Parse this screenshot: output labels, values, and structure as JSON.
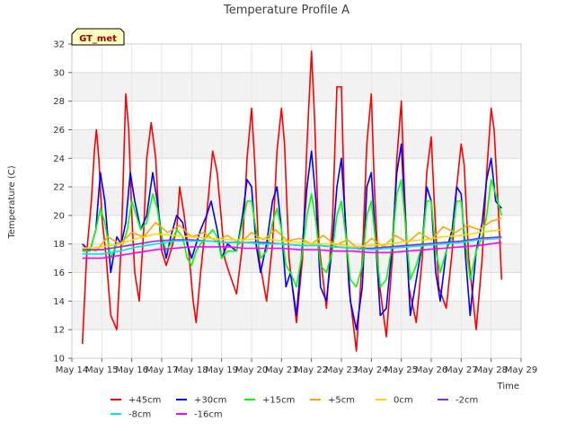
{
  "chart_data": {
    "type": "line",
    "title": "Temperature Profile A",
    "xlabel": "Time",
    "ylabel": "Temperature (C)",
    "badge": "GT_met",
    "xlim": [
      0,
      15
    ],
    "ylim": [
      10,
      32
    ],
    "y_ticks": [
      10,
      12,
      14,
      16,
      18,
      20,
      22,
      24,
      26,
      28,
      30,
      32
    ],
    "x_tick_labels": [
      "May 14",
      "May 15",
      "May 16",
      "May 17",
      "May 18",
      "May 19",
      "May 20",
      "May 21",
      "May 22",
      "May 23",
      "May 24",
      "May 25",
      "May 26",
      "May 27",
      "May 28",
      "May 29"
    ],
    "x_unit": "days from May 14",
    "grid": true,
    "legend_position": "bottom",
    "series": [
      {
        "name": "+45cm",
        "color": "#ff0000",
        "x": [
          0.35,
          0.5,
          0.65,
          0.75,
          0.82,
          0.9,
          1.0,
          1.15,
          1.3,
          1.5,
          1.65,
          1.75,
          1.8,
          1.9,
          2.0,
          2.1,
          2.25,
          2.4,
          2.5,
          2.65,
          2.8,
          2.9,
          3.0,
          3.15,
          3.3,
          3.5,
          3.6,
          3.75,
          3.9,
          4.05,
          4.15,
          4.3,
          4.5,
          4.7,
          4.85,
          5.0,
          5.1,
          5.25,
          5.5,
          5.7,
          5.85,
          6.0,
          6.1,
          6.25,
          6.5,
          6.7,
          6.85,
          7.0,
          7.1,
          7.25,
          7.5,
          7.7,
          7.85,
          8.0,
          8.1,
          8.25,
          8.5,
          8.7,
          8.85,
          9.0,
          9.1,
          9.25,
          9.5,
          9.7,
          9.85,
          10.0,
          10.1,
          10.25,
          10.5,
          10.7,
          10.85,
          11.0,
          11.1,
          11.25,
          11.5,
          11.7,
          11.85,
          12.0,
          12.1,
          12.25,
          12.5,
          12.7,
          12.85,
          13.0,
          13.1,
          13.25,
          13.5,
          13.7,
          13.85,
          14.0,
          14.1,
          14.25,
          14.35
        ],
        "values": [
          11.0,
          17.5,
          21.0,
          24.5,
          26.0,
          24.0,
          20.0,
          17.0,
          13.0,
          12.0,
          18.0,
          25.0,
          28.5,
          26.0,
          20.0,
          16.0,
          14.0,
          19.0,
          24.0,
          26.5,
          24.0,
          20.0,
          17.5,
          16.5,
          17.5,
          19.0,
          22.0,
          20.0,
          17.5,
          14.0,
          12.5,
          16.0,
          20.0,
          24.5,
          23.0,
          19.5,
          17.0,
          16.0,
          14.5,
          18.0,
          24.0,
          27.5,
          24.0,
          17.0,
          14.0,
          18.0,
          24.5,
          27.5,
          25.0,
          17.0,
          12.5,
          17.0,
          25.0,
          31.5,
          27.0,
          18.0,
          13.5,
          19.5,
          29.0,
          29.0,
          21.0,
          15.0,
          10.5,
          17.0,
          25.0,
          28.5,
          22.0,
          15.5,
          11.5,
          17.0,
          24.0,
          28.0,
          22.0,
          15.0,
          12.5,
          17.0,
          23.0,
          25.5,
          21.0,
          15.0,
          13.5,
          17.5,
          22.0,
          25.0,
          23.5,
          17.0,
          12.0,
          17.0,
          23.0,
          27.5,
          26.0,
          20.0,
          15.5
        ]
      },
      {
        "name": "+30cm",
        "color": "#0000ff",
        "x": [
          0.35,
          0.6,
          0.8,
          0.95,
          1.1,
          1.3,
          1.5,
          1.65,
          1.8,
          1.95,
          2.1,
          2.3,
          2.5,
          2.7,
          2.85,
          3.0,
          3.15,
          3.3,
          3.5,
          3.7,
          3.85,
          4.0,
          4.15,
          4.3,
          4.5,
          4.65,
          4.85,
          5.0,
          5.2,
          5.5,
          5.7,
          5.85,
          6.0,
          6.15,
          6.3,
          6.5,
          6.7,
          6.85,
          7.0,
          7.15,
          7.3,
          7.5,
          7.7,
          7.85,
          8.0,
          8.15,
          8.3,
          8.5,
          8.7,
          8.85,
          9.0,
          9.15,
          9.3,
          9.5,
          9.7,
          9.85,
          10.0,
          10.15,
          10.3,
          10.5,
          10.7,
          10.85,
          11.0,
          11.15,
          11.3,
          11.5,
          11.7,
          11.85,
          12.0,
          12.15,
          12.3,
          12.5,
          12.7,
          12.85,
          13.0,
          13.15,
          13.3,
          13.5,
          13.7,
          13.85,
          14.0,
          14.15,
          14.35
        ],
        "values": [
          18.0,
          17.5,
          19.0,
          23.0,
          21.0,
          16.0,
          18.5,
          18.0,
          19.5,
          23.0,
          21.0,
          19.0,
          20.0,
          23.0,
          21.0,
          18.5,
          17.0,
          18.5,
          20.0,
          19.5,
          18.0,
          17.0,
          18.0,
          19.0,
          20.0,
          21.0,
          19.0,
          17.0,
          18.0,
          17.5,
          20.0,
          22.5,
          22.0,
          18.0,
          16.0,
          18.0,
          21.0,
          22.0,
          19.0,
          15.0,
          16.0,
          13.0,
          18.0,
          22.0,
          24.5,
          21.0,
          15.0,
          14.0,
          18.0,
          22.0,
          24.0,
          19.0,
          14.0,
          12.0,
          15.0,
          22.0,
          23.0,
          18.0,
          13.0,
          13.5,
          18.0,
          23.0,
          25.0,
          19.0,
          13.0,
          15.5,
          18.0,
          22.0,
          21.0,
          16.0,
          14.0,
          17.5,
          19.0,
          22.0,
          21.5,
          17.0,
          13.0,
          17.5,
          19.5,
          22.5,
          24.0,
          21.0,
          20.5
        ]
      },
      {
        "name": "+15cm",
        "color": "#00ff00",
        "x": [
          0.35,
          0.6,
          0.8,
          0.95,
          1.1,
          1.3,
          1.5,
          1.7,
          1.85,
          2.0,
          2.15,
          2.3,
          2.5,
          2.7,
          2.85,
          3.0,
          3.15,
          3.3,
          3.5,
          3.7,
          3.85,
          4.0,
          4.15,
          4.3,
          4.5,
          4.7,
          4.85,
          5.0,
          5.2,
          5.5,
          5.7,
          5.85,
          6.0,
          6.15,
          6.3,
          6.5,
          6.7,
          6.85,
          7.0,
          7.15,
          7.3,
          7.5,
          7.7,
          7.85,
          8.0,
          8.15,
          8.3,
          8.5,
          8.7,
          8.85,
          9.0,
          9.15,
          9.3,
          9.5,
          9.7,
          9.85,
          10.0,
          10.15,
          10.3,
          10.5,
          10.7,
          10.85,
          11.0,
          11.15,
          11.3,
          11.5,
          11.7,
          11.85,
          12.0,
          12.15,
          12.3,
          12.5,
          12.7,
          12.85,
          13.0,
          13.15,
          13.3,
          13.5,
          13.7,
          13.85,
          14.0,
          14.15,
          14.35
        ],
        "values": [
          17.5,
          17.5,
          19.0,
          20.5,
          19.5,
          17.0,
          18.0,
          18.0,
          19.0,
          21.0,
          20.0,
          19.0,
          19.5,
          21.5,
          20.5,
          18.5,
          17.5,
          18.0,
          19.0,
          18.5,
          17.0,
          16.5,
          17.5,
          18.0,
          18.5,
          19.0,
          18.5,
          17.0,
          17.5,
          17.5,
          19.5,
          21.0,
          21.0,
          19.0,
          17.0,
          17.5,
          19.5,
          20.5,
          19.0,
          16.5,
          16.0,
          15.0,
          17.5,
          20.0,
          21.5,
          19.5,
          16.5,
          16.0,
          17.5,
          20.0,
          21.0,
          18.5,
          15.5,
          15.0,
          16.5,
          20.0,
          21.0,
          18.0,
          15.0,
          15.5,
          18.0,
          21.5,
          22.5,
          19.0,
          15.5,
          16.5,
          18.0,
          21.0,
          21.0,
          17.5,
          16.0,
          17.5,
          18.5,
          21.0,
          21.0,
          18.0,
          15.5,
          17.5,
          18.5,
          20.0,
          22.5,
          21.5,
          20.0
        ]
      },
      {
        "name": "+5cm",
        "color": "#ffa500",
        "x": [
          0.35,
          0.8,
          1.2,
          1.6,
          2.0,
          2.4,
          2.8,
          3.2,
          3.6,
          4.0,
          4.4,
          4.8,
          5.2,
          5.6,
          6.0,
          6.4,
          6.8,
          7.2,
          7.6,
          8.0,
          8.4,
          8.8,
          9.2,
          9.6,
          10.0,
          10.4,
          10.8,
          11.2,
          11.6,
          12.0,
          12.4,
          12.8,
          13.2,
          13.6,
          14.0,
          14.35
        ],
        "values": [
          17.8,
          17.5,
          18.5,
          18.0,
          18.8,
          18.5,
          19.5,
          18.8,
          19.3,
          18.5,
          18.8,
          18.2,
          18.6,
          18.0,
          18.8,
          18.3,
          19.0,
          18.2,
          18.4,
          18.0,
          18.6,
          17.9,
          18.3,
          17.6,
          18.4,
          17.8,
          18.6,
          18.1,
          18.8,
          18.3,
          19.2,
          18.8,
          19.3,
          19.0,
          19.6,
          19.8
        ]
      },
      {
        "name": "0cm",
        "color": "#ffd700",
        "x": [
          0.35,
          1.0,
          1.6,
          2.2,
          2.8,
          3.4,
          4.0,
          4.6,
          5.2,
          5.8,
          6.4,
          7.0,
          7.6,
          8.2,
          8.8,
          9.4,
          10.0,
          10.6,
          11.2,
          11.8,
          12.4,
          13.0,
          13.6,
          14.35
        ],
        "values": [
          17.7,
          17.8,
          18.0,
          18.4,
          18.7,
          18.6,
          18.5,
          18.4,
          18.3,
          18.3,
          18.4,
          18.2,
          18.1,
          18.0,
          18.0,
          17.8,
          17.9,
          18.0,
          18.2,
          18.3,
          18.5,
          18.6,
          18.8,
          19.0
        ]
      },
      {
        "name": "-2cm",
        "color": "#8a2be2",
        "x": [
          0.35,
          1.0,
          1.6,
          2.2,
          2.8,
          3.4,
          4.0,
          4.6,
          5.2,
          5.8,
          6.4,
          7.0,
          7.6,
          8.2,
          8.8,
          9.4,
          10.0,
          10.6,
          11.2,
          11.8,
          12.4,
          13.0,
          13.6,
          14.35
        ],
        "values": [
          17.6,
          17.6,
          17.8,
          18.0,
          18.2,
          18.3,
          18.3,
          18.2,
          18.1,
          18.1,
          18.1,
          18.0,
          17.9,
          17.9,
          17.8,
          17.7,
          17.7,
          17.8,
          17.9,
          18.0,
          18.1,
          18.2,
          18.4,
          18.5
        ]
      },
      {
        "name": "-8cm",
        "color": "#00e5ee",
        "x": [
          0.35,
          1.0,
          1.6,
          2.2,
          2.8,
          3.4,
          4.0,
          4.6,
          5.2,
          5.8,
          6.4,
          7.0,
          7.6,
          8.2,
          8.8,
          9.4,
          10.0,
          10.6,
          11.2,
          11.8,
          12.4,
          13.0,
          13.6,
          14.35
        ],
        "values": [
          17.3,
          17.3,
          17.5,
          17.8,
          18.0,
          18.2,
          18.2,
          18.2,
          18.1,
          18.1,
          18.0,
          18.0,
          17.9,
          17.9,
          17.8,
          17.7,
          17.6,
          17.7,
          17.8,
          17.9,
          18.0,
          18.1,
          18.3,
          18.4
        ]
      },
      {
        "name": "-16cm",
        "color": "#ff00ff",
        "x": [
          0.35,
          1.0,
          1.6,
          2.2,
          2.8,
          3.4,
          4.0,
          4.6,
          5.2,
          5.8,
          6.4,
          7.0,
          7.6,
          8.2,
          8.8,
          9.4,
          10.0,
          10.6,
          11.2,
          11.8,
          12.4,
          13.0,
          13.6,
          14.35
        ],
        "values": [
          17.0,
          17.0,
          17.2,
          17.4,
          17.6,
          17.7,
          17.8,
          17.8,
          17.8,
          17.7,
          17.7,
          17.7,
          17.6,
          17.6,
          17.5,
          17.5,
          17.4,
          17.4,
          17.5,
          17.6,
          17.7,
          17.8,
          17.9,
          18.1
        ]
      }
    ]
  }
}
